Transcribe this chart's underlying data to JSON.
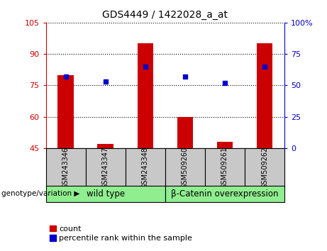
{
  "title": "GDS4449 / 1422028_a_at",
  "samples": [
    "GSM243346",
    "GSM243347",
    "GSM243348",
    "GSM509260",
    "GSM509261",
    "GSM509262"
  ],
  "counts": [
    80,
    47,
    95,
    60,
    48,
    95
  ],
  "percentiles": [
    57,
    53,
    65,
    57,
    52,
    65
  ],
  "bar_bottom": 45,
  "ylim_left": [
    45,
    105
  ],
  "ylim_right": [
    0,
    100
  ],
  "yticks_left": [
    45,
    60,
    75,
    90,
    105
  ],
  "yticks_right": [
    0,
    25,
    50,
    75,
    100
  ],
  "bar_color": "#cc0000",
  "marker_color": "#0000cc",
  "grid_color": "#000000",
  "group1": "wild type",
  "group2": "β-Catenin overexpression",
  "group1_indices": [
    0,
    1,
    2
  ],
  "group2_indices": [
    3,
    4,
    5
  ],
  "group_bg": "#90ee90",
  "sample_bg": "#c8c8c8",
  "legend_count_label": "count",
  "legend_pct_label": "percentile rank within the sample",
  "genotype_label": "genotype/variation"
}
